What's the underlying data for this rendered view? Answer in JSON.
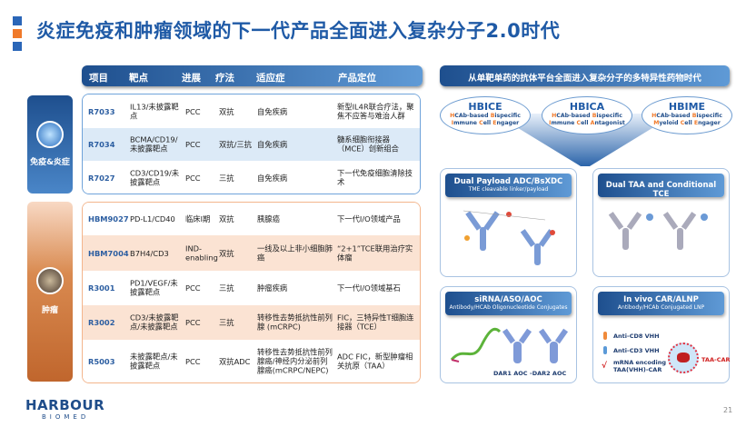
{
  "title": "炎症免疫和肿瘤领域的下一代产品全面进入复杂分子2.0时代",
  "colors": {
    "accent_blue": "#1f5aa6",
    "accent_orange": "#f07a2a"
  },
  "table": {
    "headers": [
      "项目",
      "靶点",
      "进展",
      "疗法",
      "适应症",
      "产品定位"
    ],
    "groups": [
      {
        "label": "免疫&炎症",
        "icon": "immune-cell-icon",
        "rows": [
          {
            "id": "R7033",
            "target": "IL13/未披露靶点",
            "stage": "PCC",
            "therapy": "双抗",
            "indication": "自免疾病",
            "positioning": "新型IL4R联合疗法，聚焦不应答与难治人群"
          },
          {
            "id": "R7034",
            "target": "BCMA/CD19/未披露靶点",
            "stage": "PCC",
            "therapy": "双抗/三抗",
            "indication": "自免疾病",
            "positioning": "髓系细胞衔接器（MCE）创新组合"
          },
          {
            "id": "R7027",
            "target": "CD3/CD19/未披露靶点",
            "stage": "PCC",
            "therapy": "三抗",
            "indication": "自免疾病",
            "positioning": "下一代免疫细胞清除技术"
          }
        ]
      },
      {
        "label": "肿瘤",
        "icon": "tumor-cell-icon",
        "rows": [
          {
            "id": "HBM9027",
            "target": "PD-L1/CD40",
            "stage": "临床I期",
            "therapy": "双抗",
            "indication": "胰腺癌",
            "positioning": "下一代I/O领域产品"
          },
          {
            "id": "HBM7004",
            "target": "B7H4/CD3",
            "stage": "IND-enabling",
            "therapy": "双抗",
            "indication": "一线及以上非小细胞肺癌",
            "positioning": "“2+1”TCE联用治疗实体瘤"
          },
          {
            "id": "R3001",
            "target": "PD1/VEGF/未披露靶点",
            "stage": "PCC",
            "therapy": "三抗",
            "indication": "肿瘤疾病",
            "positioning": "下一代I/O领域基石"
          },
          {
            "id": "R3002",
            "target": "CD3/未披露靶点/未披露靶点",
            "stage": "PCC",
            "therapy": "三抗",
            "indication": "转移性去势抵抗性前列腺 (mCRPC)",
            "positioning": "FIC，三特异性T细胞连接器（TCE）"
          },
          {
            "id": "R5003",
            "target": "未披露靶点/未披露靶点",
            "stage": "PCC",
            "therapy": "双抗ADC",
            "indication": "转移性去势抵抗性前列腺癌/神经内分泌前列腺癌(mCRPC/NEPC)",
            "positioning": "ADC FIC，新型肿瘤相关抗原（TAA）"
          }
        ]
      }
    ]
  },
  "right": {
    "header": "从单靶单药的抗体平台全面进入复杂分子的多特异性药物时代",
    "platforms": [
      {
        "name": "HBICE",
        "l1": [
          "H",
          "CAb-based ",
          "B",
          "ispecific"
        ],
        "l2": [
          "I",
          "mmune ",
          "C",
          "ell ",
          "E",
          "ngager"
        ]
      },
      {
        "name": "HBICA",
        "l1": [
          "H",
          "CAb-based ",
          "B",
          "ispecific"
        ],
        "l2": [
          "I",
          "mmune ",
          "C",
          "ell ",
          "A",
          "ntagonist"
        ]
      },
      {
        "name": "HBIME",
        "l1": [
          "H",
          "CAb-based ",
          "B",
          "ispecific"
        ],
        "l2": [
          "M",
          "yeloid ",
          "C",
          "ell ",
          "E",
          "ngager"
        ]
      }
    ],
    "panels": [
      {
        "title": "Dual Payload ADC/BsXDC",
        "subtitle": "TME cleavable linker/payload"
      },
      {
        "title": "Dual TAA and Conditional TCE",
        "subtitle": ""
      },
      {
        "title": "siRNA/ASO/AOC",
        "subtitle": "Antibody/HCAb Oligonucleotide Conjugates",
        "labels": [
          "DAR1 AOC",
          "-DAR2 AOC"
        ]
      },
      {
        "title": "In vivo CAR/ALNP",
        "subtitle": "Antibody/HCAb Conjugated LNP",
        "labels": [
          "Anti-CD8 VHH",
          "Anti-CD3 VHH",
          "mRNA encoding TAA(VHH)-CAR",
          "TAA-CAR"
        ]
      }
    ]
  },
  "footer": {
    "logo_top": "HARBOUR",
    "logo_bottom": "BIOMED",
    "page": "21"
  }
}
